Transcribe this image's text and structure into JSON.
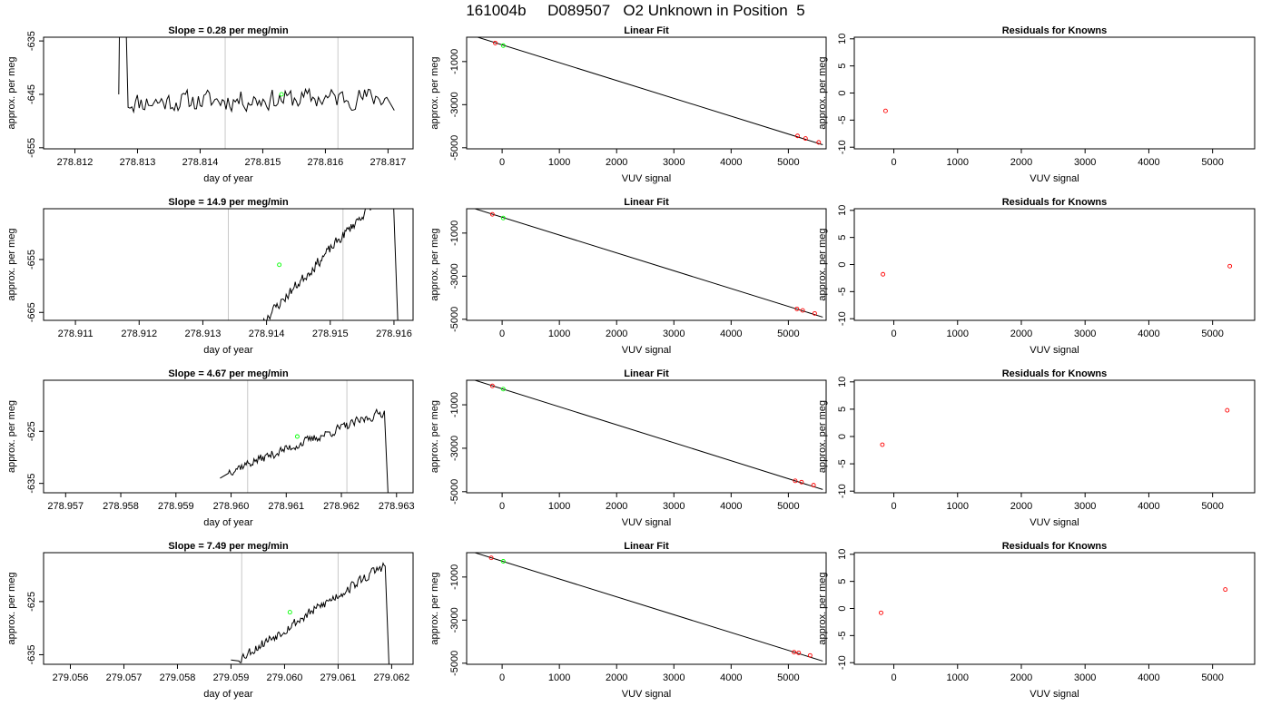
{
  "figure": {
    "title": "161004b     D089507   O2 Unknown in Position  5"
  },
  "colors": {
    "trace": "#000000",
    "marker_line": "#c8c8c8",
    "unknown_point": "#00ff00",
    "known_point": "#ff0000",
    "fit_line": "#000000",
    "axis": "#000000"
  },
  "chart_data": [
    {
      "type": "line",
      "panel": "time-1",
      "title": "Slope =  0.28  per meg/min",
      "xlabel": "day of year",
      "ylabel": "approx. per meg",
      "xlim": [
        278.8115,
        278.8174
      ],
      "ylim": [
        -655.2,
        -634.3
      ],
      "xticks": [
        278.812,
        278.813,
        278.814,
        278.815,
        278.816,
        278.817
      ],
      "xtick_labels": [
        "278.812",
        "278.813",
        "278.814",
        "278.815",
        "278.816",
        "278.817"
      ],
      "yticks": [
        -655,
        -645,
        -635
      ],
      "ytick_labels": [
        "-655",
        "-645",
        "-635"
      ],
      "marker_lines": [
        278.8144,
        278.8162
      ],
      "unknown_point": {
        "x": 278.8153,
        "y": -645
      },
      "trace": {
        "start": 278.8127,
        "end": 278.8171,
        "base": -646,
        "trend": 0.28,
        "low_start": -645,
        "low_end": -648,
        "amp": 2.6,
        "lead_in": "spike-up",
        "seed": 11
      }
    },
    {
      "type": "scatter",
      "panel": "fit-1",
      "title": "Linear Fit",
      "xlabel": "VUV signal",
      "ylabel": "approx. per meg",
      "xlim": [
        -620,
        5660
      ],
      "ylim": [
        -5050,
        130
      ],
      "xticks": [
        0,
        1000,
        2000,
        3000,
        4000,
        5000
      ],
      "xtick_labels": [
        "0",
        "1000",
        "2000",
        "3000",
        "4000",
        "5000"
      ],
      "yticks": [
        -5000,
        -3000,
        -1000
      ],
      "ytick_labels": [
        "-5000",
        "-3000",
        "-1000"
      ],
      "fit_line": {
        "x": [
          -500,
          5600
        ],
        "y": [
          190,
          -4860
        ]
      },
      "known_points": [
        {
          "x": -120,
          "y": -140
        },
        {
          "x": 5160,
          "y": -4450
        },
        {
          "x": 5300,
          "y": -4570
        },
        {
          "x": 5530,
          "y": -4750
        }
      ],
      "unknown_points": [
        {
          "x": 20,
          "y": -260
        }
      ]
    },
    {
      "type": "scatter",
      "panel": "residuals-1",
      "title": "Residuals for Knowns",
      "xlabel": "VUV signal",
      "ylabel": "approx. per meg",
      "xlim": [
        -620,
        5660
      ],
      "ylim": [
        -10.3,
        10.3
      ],
      "xticks": [
        0,
        1000,
        2000,
        3000,
        4000,
        5000
      ],
      "xtick_labels": [
        "0",
        "1000",
        "2000",
        "3000",
        "4000",
        "5000"
      ],
      "yticks": [
        -10,
        -5,
        0,
        5,
        10
      ],
      "ytick_labels": [
        "-10",
        "-5",
        "0",
        "5",
        "10"
      ],
      "points": [
        {
          "x": -130,
          "y": -3.3
        }
      ]
    },
    {
      "type": "line",
      "panel": "time-2",
      "title": "Slope =  14.9  per meg/min",
      "xlabel": "day of year",
      "ylabel": "approx. per meg",
      "xlim": [
        278.9105,
        278.9163
      ],
      "ylim": [
        -666.5,
        -645.4
      ],
      "xticks": [
        278.911,
        278.912,
        278.913,
        278.914,
        278.915,
        278.916
      ],
      "xtick_labels": [
        "278.911",
        "278.912",
        "278.913",
        "278.914",
        "278.915",
        "278.916"
      ],
      "yticks": [
        -665,
        -655
      ],
      "ytick_labels": [
        "-665",
        "-655"
      ],
      "marker_lines": [
        278.9134,
        278.9152
      ],
      "unknown_point": {
        "x": 278.9142,
        "y": -656
      },
      "trace": {
        "start": 278.9136,
        "end": 278.9161,
        "base": -655,
        "trend": 14.9,
        "low_start": -668,
        "low_end": -680,
        "amp": 1.3,
        "lead_in": "none",
        "seed": 23
      }
    },
    {
      "type": "scatter",
      "panel": "fit-2",
      "title": "Linear Fit",
      "xlabel": "VUV signal",
      "ylabel": "approx. per meg",
      "xlim": [
        -620,
        5660
      ],
      "ylim": [
        -5050,
        130
      ],
      "xticks": [
        0,
        1000,
        2000,
        3000,
        4000,
        5000
      ],
      "xtick_labels": [
        "0",
        "1000",
        "2000",
        "3000",
        "4000",
        "5000"
      ],
      "yticks": [
        -5000,
        -3000,
        -1000
      ],
      "ytick_labels": [
        "-5000",
        "-3000",
        "-1000"
      ],
      "fit_line": {
        "x": [
          -500,
          5600
        ],
        "y": [
          150,
          -4900
        ]
      },
      "known_points": [
        {
          "x": -170,
          "y": -130
        },
        {
          "x": 5150,
          "y": -4520
        },
        {
          "x": 5250,
          "y": -4590
        },
        {
          "x": 5460,
          "y": -4730
        }
      ],
      "unknown_points": [
        {
          "x": 20,
          "y": -300
        }
      ]
    },
    {
      "type": "scatter",
      "panel": "residuals-2",
      "title": "Residuals for Knowns",
      "xlabel": "VUV signal",
      "ylabel": "approx. per meg",
      "xlim": [
        -620,
        5660
      ],
      "ylim": [
        -10.3,
        10.3
      ],
      "xticks": [
        0,
        1000,
        2000,
        3000,
        4000,
        5000
      ],
      "xtick_labels": [
        "0",
        "1000",
        "2000",
        "3000",
        "4000",
        "5000"
      ],
      "yticks": [
        -10,
        -5,
        0,
        5,
        10
      ],
      "ytick_labels": [
        "-10",
        "-5",
        "0",
        "5",
        "10"
      ],
      "points": [
        {
          "x": -170,
          "y": -1.8
        },
        {
          "x": 5270,
          "y": -0.3
        }
      ]
    },
    {
      "type": "line",
      "panel": "time-3",
      "title": "Slope =  4.67  per meg/min",
      "xlabel": "day of year",
      "ylabel": "approx. per meg",
      "xlim": [
        278.9566,
        278.9633
      ],
      "ylim": [
        -636.8,
        -615.2
      ],
      "xticks": [
        278.957,
        278.958,
        278.959,
        278.96,
        278.961,
        278.962,
        278.963
      ],
      "xtick_labels": [
        "278.957",
        "278.958",
        "278.959",
        "278.960",
        "278.961",
        "278.962",
        "278.963"
      ],
      "yticks": [
        -635,
        -625
      ],
      "ytick_labels": [
        "-635",
        "-625"
      ],
      "marker_lines": [
        278.9603,
        278.9621
      ],
      "unknown_point": {
        "x": 278.9612,
        "y": -626
      },
      "trace": {
        "start": 278.9598,
        "end": 278.9629,
        "base": -627,
        "trend": 4.67,
        "low_start": -634,
        "low_end": -650,
        "amp": 1.2,
        "lead_in": "rise-in",
        "seed": 37
      }
    },
    {
      "type": "scatter",
      "panel": "fit-3",
      "title": "Linear Fit",
      "xlabel": "VUV signal",
      "ylabel": "approx. per meg",
      "xlim": [
        -620,
        5660
      ],
      "ylim": [
        -5050,
        130
      ],
      "xticks": [
        0,
        1000,
        2000,
        3000,
        4000,
        5000
      ],
      "xtick_labels": [
        "0",
        "1000",
        "2000",
        "3000",
        "4000",
        "5000"
      ],
      "yticks": [
        -5000,
        -3000,
        -1000
      ],
      "ytick_labels": [
        "-5000",
        "-3000",
        "-1000"
      ],
      "fit_line": {
        "x": [
          -500,
          5600
        ],
        "y": [
          150,
          -4900
        ]
      },
      "known_points": [
        {
          "x": -170,
          "y": -130
        },
        {
          "x": 5120,
          "y": -4500
        },
        {
          "x": 5230,
          "y": -4560
        },
        {
          "x": 5440,
          "y": -4700
        }
      ],
      "unknown_points": [
        {
          "x": 20,
          "y": -280
        }
      ]
    },
    {
      "type": "scatter",
      "panel": "residuals-3",
      "title": "Residuals for Knowns",
      "xlabel": "VUV signal",
      "ylabel": "approx. per meg",
      "xlim": [
        -620,
        5660
      ],
      "ylim": [
        -10.3,
        10.3
      ],
      "xticks": [
        0,
        1000,
        2000,
        3000,
        4000,
        5000
      ],
      "xtick_labels": [
        "0",
        "1000",
        "2000",
        "3000",
        "4000",
        "5000"
      ],
      "yticks": [
        -10,
        -5,
        0,
        5,
        10
      ],
      "ytick_labels": [
        "-10",
        "-5",
        "0",
        "5",
        "10"
      ],
      "points": [
        {
          "x": -180,
          "y": -1.5
        },
        {
          "x": 5230,
          "y": 4.8
        }
      ]
    },
    {
      "type": "line",
      "panel": "time-4",
      "title": "Slope =  7.49  per meg/min",
      "xlabel": "day of year",
      "ylabel": "approx. per meg",
      "xlim": [
        279.0555,
        279.0624
      ],
      "ylim": [
        -636.8,
        -615.8
      ],
      "xticks": [
        279.056,
        279.057,
        279.058,
        279.059,
        279.06,
        279.061,
        279.062
      ],
      "xtick_labels": [
        "279.056",
        "279.057",
        "279.058",
        "279.059",
        "279.060",
        "279.061",
        "279.062"
      ],
      "yticks": [
        -635,
        -625
      ],
      "ytick_labels": [
        "-635",
        "-625"
      ],
      "marker_lines": [
        279.0592,
        279.061
      ],
      "unknown_point": {
        "x": 279.0601,
        "y": -627
      },
      "trace": {
        "start": 279.059,
        "end": 279.062,
        "base": -627,
        "trend": 7.49,
        "low_start": -636,
        "low_end": -650,
        "amp": 1.3,
        "lead_in": "rise-in",
        "seed": 53
      }
    },
    {
      "type": "scatter",
      "panel": "fit-4",
      "title": "Linear Fit",
      "xlabel": "VUV signal",
      "ylabel": "approx. per meg",
      "xlim": [
        -620,
        5660
      ],
      "ylim": [
        -5050,
        130
      ],
      "xticks": [
        0,
        1000,
        2000,
        3000,
        4000,
        5000
      ],
      "xtick_labels": [
        "0",
        "1000",
        "2000",
        "3000",
        "4000",
        "5000"
      ],
      "yticks": [
        -5000,
        -3000,
        -1000
      ],
      "ytick_labels": [
        "-5000",
        "-3000",
        "-1000"
      ],
      "fit_line": {
        "x": [
          -500,
          5600
        ],
        "y": [
          150,
          -4900
        ]
      },
      "known_points": [
        {
          "x": -190,
          "y": -110
        },
        {
          "x": 5100,
          "y": -4490
        },
        {
          "x": 5180,
          "y": -4520
        },
        {
          "x": 5380,
          "y": -4640
        }
      ],
      "unknown_points": [
        {
          "x": 20,
          "y": -270
        }
      ]
    },
    {
      "type": "scatter",
      "panel": "residuals-4",
      "title": "Residuals for Knowns",
      "xlabel": "VUV signal",
      "ylabel": "approx. per meg",
      "xlim": [
        -620,
        5660
      ],
      "ylim": [
        -10.3,
        10.3
      ],
      "xticks": [
        0,
        1000,
        2000,
        3000,
        4000,
        5000
      ],
      "xtick_labels": [
        "0",
        "1000",
        "2000",
        "3000",
        "4000",
        "5000"
      ],
      "yticks": [
        -10,
        -5,
        0,
        5,
        10
      ],
      "ytick_labels": [
        "-10",
        "-5",
        "0",
        "5",
        "10"
      ],
      "points": [
        {
          "x": -200,
          "y": -0.8
        },
        {
          "x": 5200,
          "y": 3.5
        }
      ]
    }
  ]
}
